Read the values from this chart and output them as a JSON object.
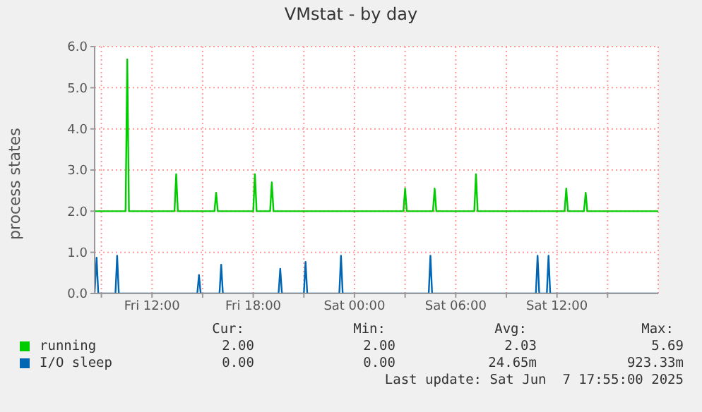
{
  "chart_data": {
    "type": "line",
    "title": "VMstat - by day",
    "ylabel": "process states",
    "xlim": [
      "2025-06-06T08:36",
      "2025-06-07T18:00"
    ],
    "xticks": [
      {
        "value": "2025-06-06T09:00",
        "label": null
      },
      {
        "value": "2025-06-06T12:00",
        "label": "Fri 12:00"
      },
      {
        "value": "2025-06-06T15:00",
        "label": null
      },
      {
        "value": "2025-06-06T18:00",
        "label": "Fri 18:00"
      },
      {
        "value": "2025-06-06T21:00",
        "label": null
      },
      {
        "value": "2025-06-07T00:00",
        "label": "Sat 00:00"
      },
      {
        "value": "2025-06-07T03:00",
        "label": null
      },
      {
        "value": "2025-06-07T06:00",
        "label": "Sat 06:00"
      },
      {
        "value": "2025-06-07T09:00",
        "label": null
      },
      {
        "value": "2025-06-07T12:00",
        "label": "Sat 12:00"
      },
      {
        "value": "2025-06-07T15:00",
        "label": null
      }
    ],
    "ylim": [
      0,
      6
    ],
    "yticks": [
      {
        "value": 0,
        "label": "0.0"
      },
      {
        "value": 1,
        "label": "1.0"
      },
      {
        "value": 2,
        "label": "2.0"
      },
      {
        "value": 3,
        "label": "3.0"
      },
      {
        "value": 4,
        "label": "4.0"
      },
      {
        "value": 5,
        "label": "5.0"
      },
      {
        "value": 6,
        "label": "6.0"
      }
    ],
    "grid": true,
    "legend": "bottom",
    "marker": "none",
    "line_style": "solid",
    "series": [
      {
        "name": "running",
        "color": "#00cc00",
        "x": [
          "2025-06-06T08:36",
          "2025-06-06T10:26",
          "2025-06-06T10:32",
          "2025-06-06T10:38",
          "2025-06-06T13:20",
          "2025-06-06T13:26",
          "2025-06-06T13:32",
          "2025-06-06T15:42",
          "2025-06-06T15:48",
          "2025-06-06T15:54",
          "2025-06-06T18:00",
          "2025-06-06T18:06",
          "2025-06-06T18:12",
          "2025-06-06T19:00",
          "2025-06-06T19:06",
          "2025-06-06T19:12",
          "2025-06-07T02:54",
          "2025-06-07T03:00",
          "2025-06-07T03:06",
          "2025-06-07T04:39",
          "2025-06-07T04:45",
          "2025-06-07T04:51",
          "2025-06-07T07:06",
          "2025-06-07T07:12",
          "2025-06-07T07:18",
          "2025-06-07T12:27",
          "2025-06-07T12:33",
          "2025-06-07T12:39",
          "2025-06-07T13:36",
          "2025-06-07T13:42",
          "2025-06-07T13:48",
          "2025-06-07T18:00"
        ],
        "values": [
          2,
          2,
          5.69,
          2,
          2,
          2.9,
          2,
          2,
          2.45,
          2,
          2,
          2.9,
          2,
          2,
          2.7,
          2,
          2,
          2.55,
          2,
          2,
          2.55,
          2,
          2,
          2.9,
          2,
          2,
          2.55,
          2,
          2,
          2.45,
          2,
          2
        ]
      },
      {
        "name": "I/O sleep",
        "color": "#0066b3",
        "x": [
          "2025-06-06T08:36",
          "2025-06-06T08:43",
          "2025-06-06T08:49",
          "2025-06-06T09:50",
          "2025-06-06T09:56",
          "2025-06-06T10:02",
          "2025-06-06T14:41",
          "2025-06-06T14:47",
          "2025-06-06T14:53",
          "2025-06-06T16:00",
          "2025-06-06T16:06",
          "2025-06-06T16:12",
          "2025-06-06T19:30",
          "2025-06-06T19:36",
          "2025-06-06T19:42",
          "2025-06-06T21:00",
          "2025-06-06T21:06",
          "2025-06-06T21:12",
          "2025-06-06T23:06",
          "2025-06-06T23:12",
          "2025-06-06T23:18",
          "2025-06-07T04:24",
          "2025-06-07T04:30",
          "2025-06-07T04:36",
          "2025-06-07T10:45",
          "2025-06-07T10:51",
          "2025-06-07T10:57",
          "2025-06-07T11:24",
          "2025-06-07T11:30",
          "2025-06-07T11:36",
          "2025-06-07T18:00"
        ],
        "values": [
          0,
          0.87,
          0,
          0,
          0.92,
          0,
          0,
          0.45,
          0,
          0,
          0.7,
          0,
          0,
          0.6,
          0,
          0,
          0.77,
          0,
          0,
          0.92,
          0,
          0,
          0.92,
          0,
          0,
          0.92,
          0,
          0,
          0.92,
          0,
          0
        ]
      }
    ],
    "annotations": [
      "Cur:",
      "Min:",
      "Avg:",
      "Max:",
      "2.00",
      "2.00",
      "2.03",
      "5.69",
      "0.00",
      "0.00",
      "24.65m",
      "923.33m",
      "Last update: Sat Jun  7 17:55:00 2025"
    ]
  }
}
